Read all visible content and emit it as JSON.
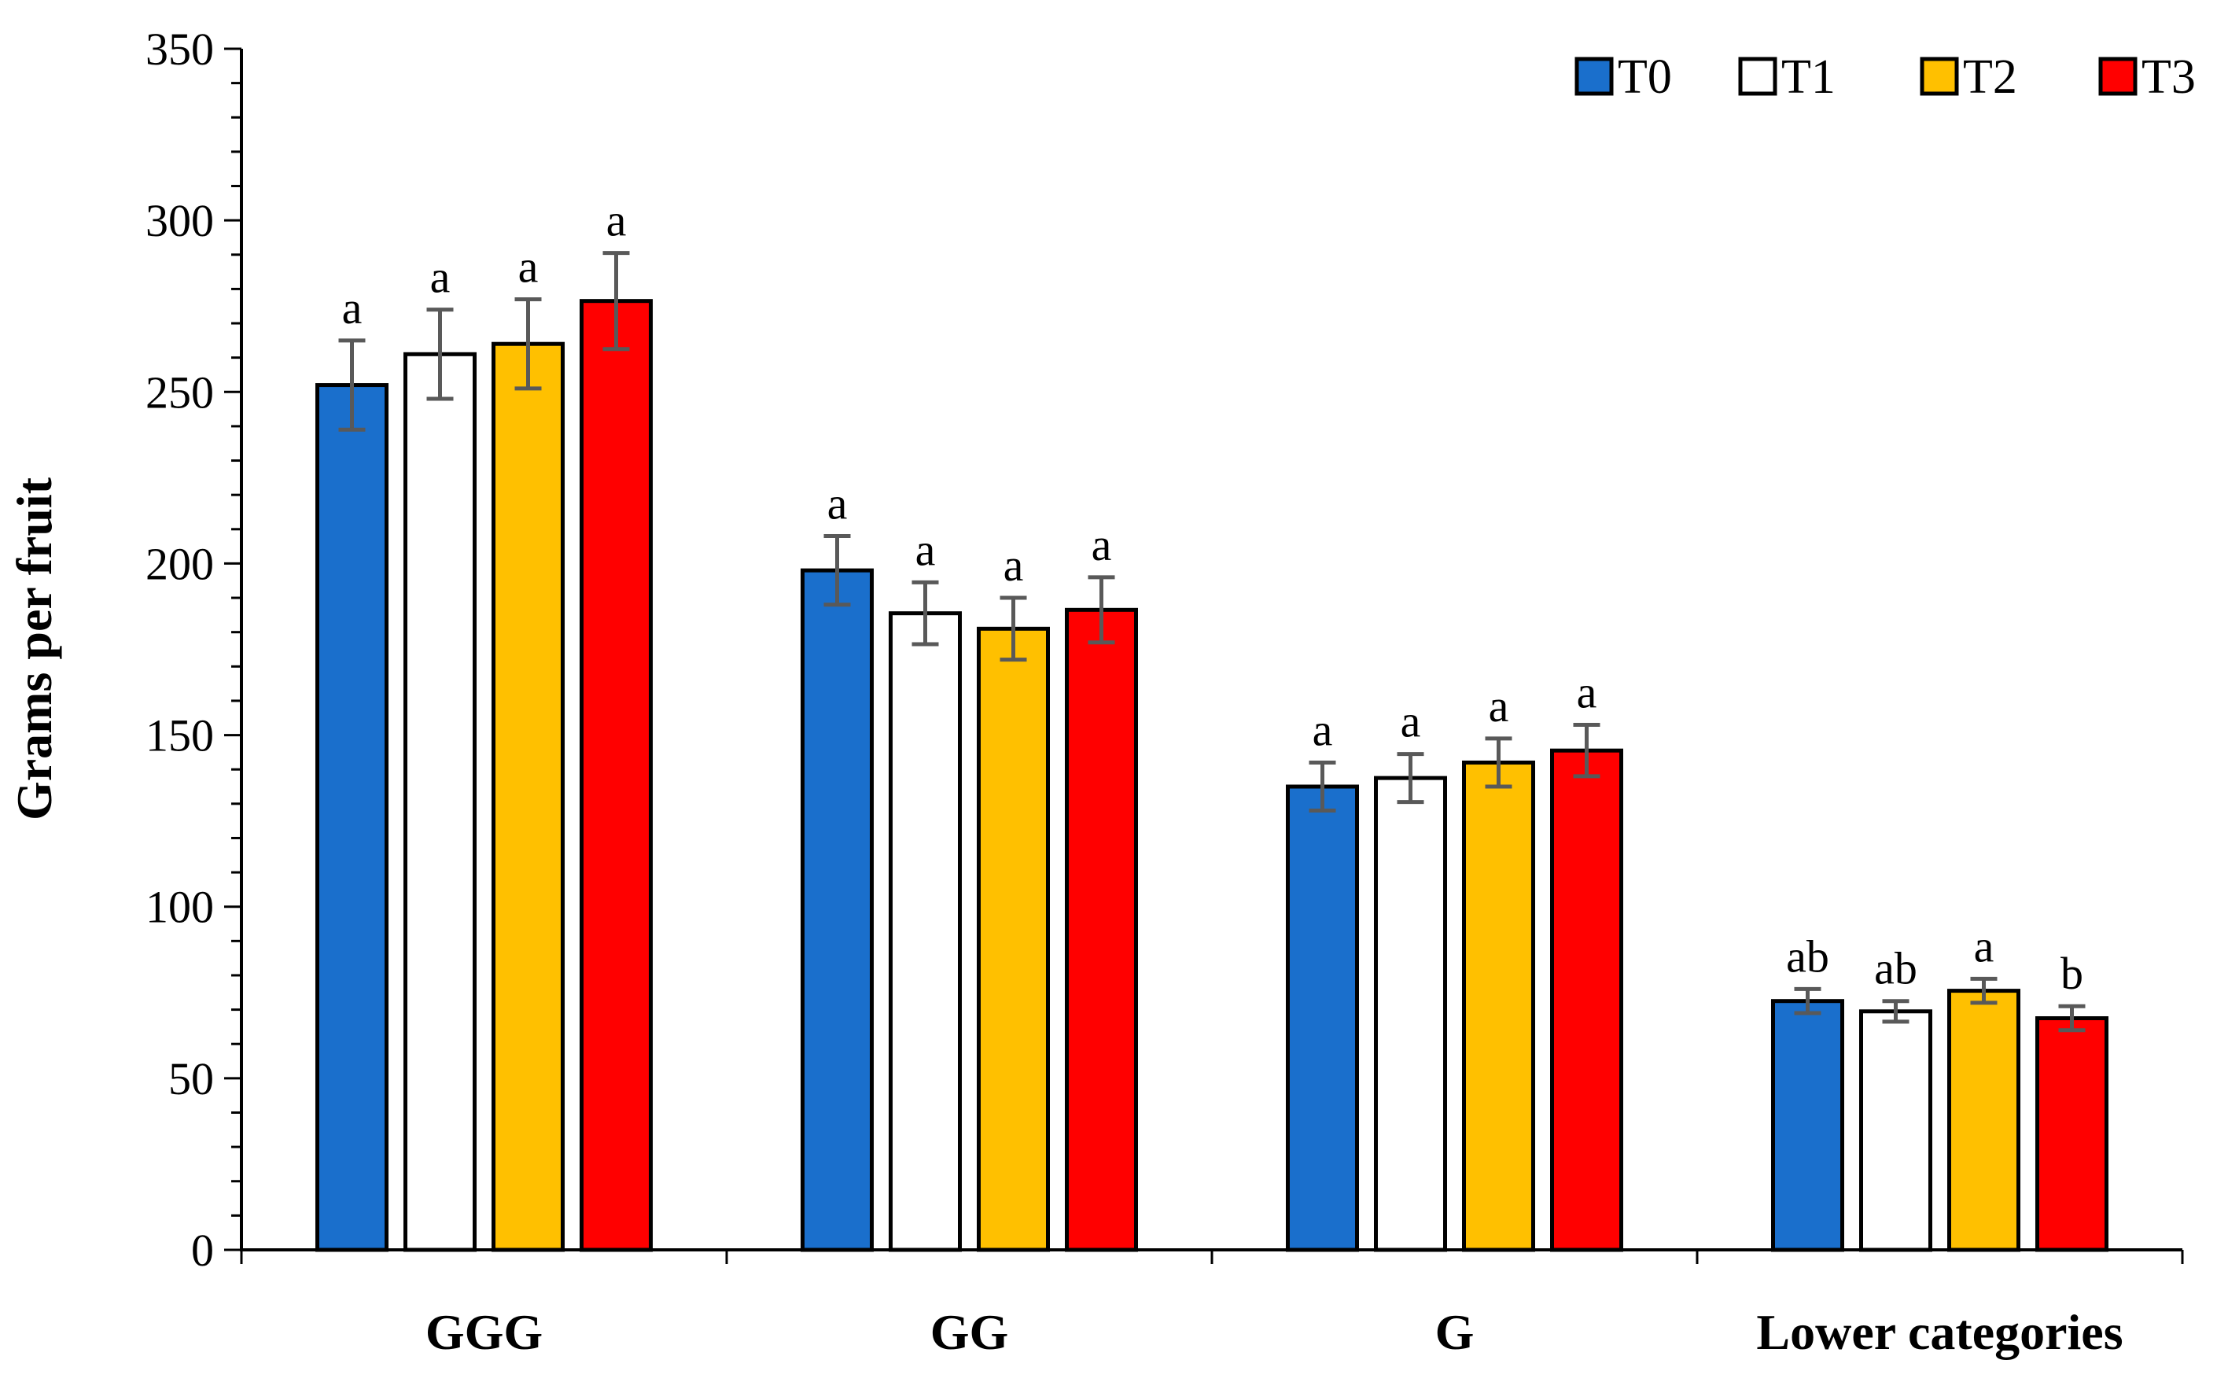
{
  "chart_data": {
    "type": "bar",
    "title": "",
    "xlabel": "",
    "ylabel": "Grams per fruit",
    "ylim": [
      0,
      350
    ],
    "yticks": [
      0,
      50,
      100,
      150,
      200,
      250,
      300,
      350
    ],
    "ytick_labels": [
      "0",
      "50",
      "100",
      "150",
      "200",
      "250",
      "300",
      "350"
    ],
    "grid": false,
    "legend_position": "top-right",
    "categories": [
      "GGG",
      "GG",
      "G",
      "Lower categories"
    ],
    "series": [
      {
        "name": "T0",
        "color": "#1a6fcc",
        "values": [
          252,
          198,
          135,
          72.5
        ],
        "errors": [
          13,
          10,
          7,
          3.5
        ],
        "letters": [
          "a",
          "a",
          "a",
          "ab"
        ]
      },
      {
        "name": "T1",
        "color": "#ffffff",
        "values": [
          261,
          185.5,
          137.5,
          69.5
        ],
        "errors": [
          13,
          9,
          7,
          3
        ],
        "letters": [
          "a",
          "a",
          "a",
          "ab"
        ]
      },
      {
        "name": "T2",
        "color": "#ffc000",
        "values": [
          264,
          181,
          142,
          75.5
        ],
        "errors": [
          13,
          9,
          7,
          3.5
        ],
        "letters": [
          "a",
          "a",
          "a",
          "a"
        ]
      },
      {
        "name": "T3",
        "color": "#ff0000",
        "values": [
          276.5,
          186.5,
          145.5,
          67.5
        ],
        "errors": [
          14,
          9.5,
          7.5,
          3.5
        ],
        "letters": [
          "a",
          "a",
          "a",
          "b"
        ]
      }
    ]
  }
}
